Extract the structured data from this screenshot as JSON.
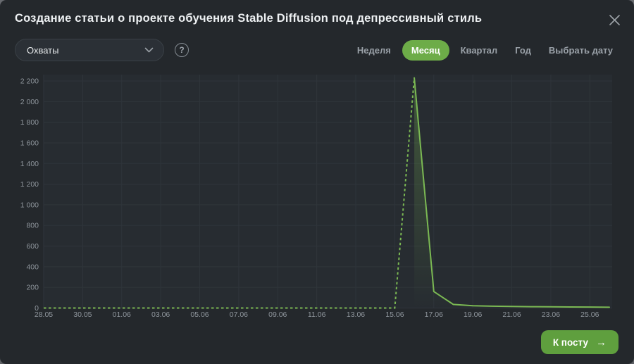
{
  "modal": {
    "title": "Создание статьи о проекте обучения Stable Diffusion под депрессивный стиль"
  },
  "controls": {
    "metric_dropdown": {
      "value": "Охваты"
    },
    "help_icon": "?",
    "period_tabs": [
      {
        "name": "week",
        "label": "Неделя",
        "selected": false
      },
      {
        "name": "month",
        "label": "Месяц",
        "selected": true
      },
      {
        "name": "quarter",
        "label": "Квартал",
        "selected": false
      },
      {
        "name": "year",
        "label": "Год",
        "selected": false
      },
      {
        "name": "pick-date",
        "label": "Выбрать дату",
        "selected": false
      }
    ]
  },
  "footer": {
    "to_post_label": "К посту",
    "arrow_icon": "→"
  },
  "colors": {
    "modal_bg": "#24282c",
    "plot_bg": "#272c31",
    "grid": "#2f353b",
    "axis_text": "#8f969d",
    "tab_text": "#9aa1a8",
    "title_text": "#edf0f2",
    "accent_green": "#6dac48",
    "button_green": "#5f9f3e",
    "line_green": "#7bb953"
  },
  "chart_data": {
    "type": "line",
    "series_name": "Охваты",
    "x": [
      "28.05",
      "29.05",
      "30.05",
      "31.05",
      "01.06",
      "02.06",
      "03.06",
      "04.06",
      "05.06",
      "06.06",
      "07.06",
      "08.06",
      "09.06",
      "10.06",
      "11.06",
      "12.06",
      "13.06",
      "14.06",
      "15.06",
      "16.06",
      "17.06",
      "18.06",
      "19.06",
      "20.06",
      "21.06",
      "22.06",
      "23.06",
      "24.06",
      "25.06",
      "26.06"
    ],
    "values": [
      0,
      0,
      0,
      0,
      0,
      0,
      0,
      0,
      0,
      0,
      0,
      0,
      0,
      0,
      0,
      0,
      0,
      0,
      0,
      2230,
      160,
      35,
      22,
      18,
      15,
      13,
      12,
      10,
      9,
      8
    ],
    "dashed_until_index": 19,
    "x_tick_every": 2,
    "ylim": [
      0,
      2200
    ],
    "y_tick_step": 200,
    "grid": true,
    "legend": false
  }
}
